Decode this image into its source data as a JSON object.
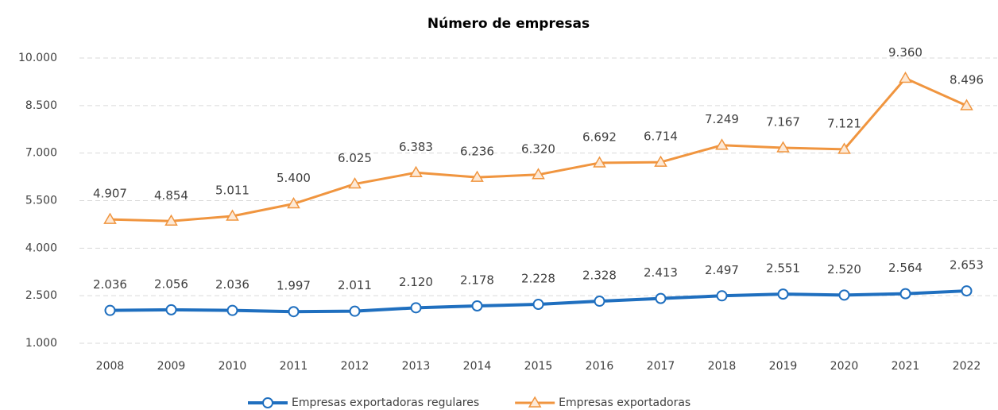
{
  "chart_data": {
    "type": "line",
    "title": "Número de empresas",
    "categories": [
      "2008",
      "2009",
      "2010",
      "2011",
      "2012",
      "2013",
      "2014",
      "2015",
      "2016",
      "2017",
      "2018",
      "2019",
      "2020",
      "2021",
      "2022"
    ],
    "series": [
      {
        "name": "Empresas exportadoras regulares",
        "color": "#1f6fbf",
        "marker": "circle",
        "values": [
          2036,
          2056,
          2036,
          1997,
          2011,
          2120,
          2178,
          2228,
          2328,
          2413,
          2497,
          2551,
          2520,
          2564,
          2653
        ],
        "value_labels": [
          "2.036",
          "2.056",
          "2.036",
          "1.997",
          "2.011",
          "2.120",
          "2.178",
          "2.228",
          "2.328",
          "2.413",
          "2.497",
          "2.551",
          "2.520",
          "2.564",
          "2.653"
        ]
      },
      {
        "name": "Empresas exportadoras",
        "color": "#f0953f",
        "marker": "triangle",
        "values": [
          4907,
          4854,
          5011,
          5400,
          6025,
          6383,
          6236,
          6320,
          6692,
          6714,
          7249,
          7167,
          7121,
          9360,
          8496
        ],
        "value_labels": [
          "4.907",
          "4.854",
          "5.011",
          "5.400",
          "6.025",
          "6.383",
          "6.236",
          "6.320",
          "6.692",
          "6.714",
          "7.249",
          "7.167",
          "7.121",
          "9.360",
          "8.496"
        ]
      }
    ],
    "ylim": [
      1000,
      10000
    ],
    "yticks": [
      {
        "value": 1000,
        "label": "1.000"
      },
      {
        "value": 2500,
        "label": "2.500"
      },
      {
        "value": 4000,
        "label": "4.000"
      },
      {
        "value": 5500,
        "label": "5.500"
      },
      {
        "value": 7000,
        "label": "7.000"
      },
      {
        "value": 8500,
        "label": "8.500"
      },
      {
        "value": 10000,
        "label": "10.000"
      }
    ],
    "grid": true,
    "legend": "bottom"
  }
}
